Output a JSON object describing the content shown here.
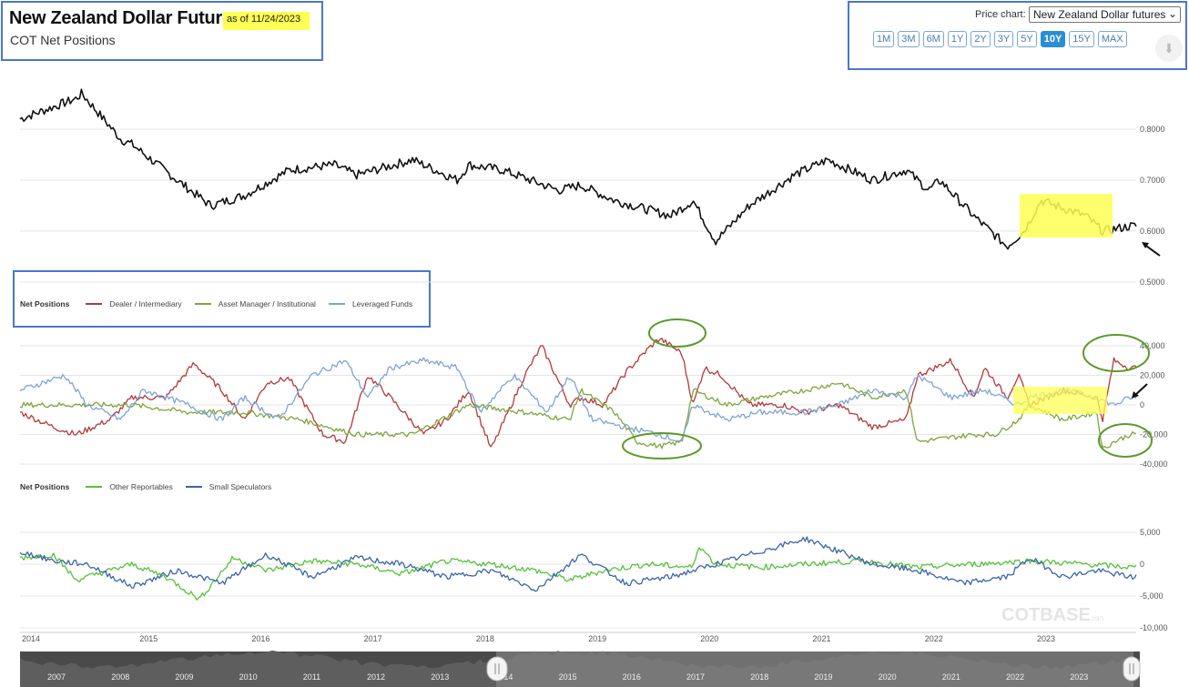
{
  "header": {
    "title": "New Zealand Dollar Futures",
    "as_of": "as of 11/24/2023",
    "subtitle": "COT Net Positions"
  },
  "controls": {
    "price_chart_label": "Price chart:",
    "price_chart_value": "New Zealand Dollar futures",
    "ranges": [
      "1M",
      "3M",
      "6M",
      "1Y",
      "2Y",
      "3Y",
      "5Y",
      "10Y",
      "15Y",
      "MAX"
    ],
    "active_range": "10Y",
    "download_icon": "download-icon"
  },
  "legend1": {
    "title": "Net Positions",
    "items": [
      "Dealer / Intermediary",
      "Asset Manager / Institutional",
      "Leveraged Funds"
    ]
  },
  "legend2": {
    "title": "Net Positions",
    "items": [
      "Other Reportables",
      "Small Speculators"
    ]
  },
  "colors": {
    "price": "#111111",
    "dealer": "#b03a3a",
    "asset": "#7fa53a",
    "leveraged": "#7fa4d4",
    "other": "#55c23a",
    "small": "#3a64a8",
    "highlight": "#ffff55",
    "frame": "#4a78c8",
    "annotation": "#5a9a2a"
  },
  "watermark": {
    "main": "COT",
    "sub": "BASE",
    "tld": ".com"
  },
  "chart_data": [
    {
      "type": "line",
      "title": "Price",
      "series": [
        {
          "name": "New Zealand Dollar futures",
          "x": [
            2014.0,
            2014.5,
            2014.55,
            2014.9,
            2015.0,
            2015.4,
            2015.7,
            2016.0,
            2016.4,
            2016.8,
            2017.0,
            2017.5,
            2017.9,
            2018.0,
            2018.3,
            2018.8,
            2019.0,
            2019.3,
            2019.8,
            2020.0,
            2020.2,
            2020.5,
            2020.9,
            2021.0,
            2021.2,
            2021.6,
            2021.9,
            2022.1,
            2022.2,
            2022.5,
            2022.8,
            2022.95,
            2023.1,
            2023.5,
            2023.65,
            2023.9
          ],
          "y": [
            0.82,
            0.86,
            0.87,
            0.78,
            0.77,
            0.7,
            0.65,
            0.67,
            0.72,
            0.73,
            0.71,
            0.74,
            0.7,
            0.73,
            0.72,
            0.68,
            0.69,
            0.66,
            0.63,
            0.66,
            0.58,
            0.65,
            0.71,
            0.72,
            0.74,
            0.7,
            0.72,
            0.68,
            0.7,
            0.63,
            0.57,
            0.6,
            0.66,
            0.63,
            0.6,
            0.61
          ]
        }
      ],
      "ylim": [
        0.5,
        0.85
      ],
      "yticks": [
        "0.8000",
        "0.7000",
        "0.6000",
        "0.5000"
      ]
    },
    {
      "type": "line",
      "title": "Net Positions",
      "series": [
        {
          "name": "Dealer / Intermediary",
          "x": [
            2014.0,
            2014.3,
            2014.5,
            2014.8,
            2015.0,
            2015.3,
            2015.55,
            2015.8,
            2016.0,
            2016.2,
            2016.4,
            2016.7,
            2016.9,
            2017.1,
            2017.3,
            2017.6,
            2017.8,
            2018.0,
            2018.2,
            2018.5,
            2018.65,
            2018.9,
            2019.0,
            2019.2,
            2019.4,
            2019.6,
            2019.7,
            2019.9,
            2020.0,
            2020.1,
            2020.25,
            2020.5,
            2020.8,
            2021.0,
            2021.3,
            2021.6,
            2021.9,
            2022.0,
            2022.3,
            2022.5,
            2022.6,
            2022.8,
            2022.9,
            2023.0,
            2023.3,
            2023.6,
            2023.65,
            2023.75,
            2023.9
          ],
          "y": [
            -5000,
            -15000,
            -20000,
            -10000,
            5000,
            5000,
            28000,
            10000,
            -10000,
            15000,
            18000,
            -20000,
            -25000,
            20000,
            5000,
            -20000,
            -10000,
            10000,
            -30000,
            20000,
            40000,
            0,
            5000,
            0,
            22000,
            38000,
            45000,
            35000,
            0,
            25000,
            20000,
            0,
            0,
            -5000,
            0,
            -15000,
            -10000,
            20000,
            30000,
            5000,
            25000,
            5000,
            20000,
            0,
            10000,
            5000,
            -10000,
            30000,
            25000
          ]
        },
        {
          "name": "Asset Manager / Institutional",
          "x": [
            2014.0,
            2014.5,
            2015.0,
            2015.5,
            2016.0,
            2016.5,
            2017.0,
            2017.5,
            2018.0,
            2018.5,
            2018.9,
            2019.0,
            2019.3,
            2019.5,
            2019.7,
            2019.9,
            2020.0,
            2020.3,
            2020.6,
            2021.0,
            2021.3,
            2021.6,
            2021.9,
            2022.0,
            2022.5,
            2022.7,
            2022.9,
            2023.0,
            2023.3,
            2023.6,
            2023.65,
            2023.75,
            2023.9
          ],
          "y": [
            0,
            0,
            0,
            -5000,
            -5000,
            -10000,
            -20000,
            -20000,
            0,
            -5000,
            -10000,
            10000,
            -5000,
            -25000,
            -28000,
            -25000,
            10000,
            0,
            5000,
            10000,
            15000,
            5000,
            10000,
            -25000,
            -20000,
            -20000,
            -10000,
            0,
            -10000,
            -5000,
            -30000,
            -25000,
            -20000
          ]
        },
        {
          "name": "Leveraged Funds",
          "x": [
            2014.0,
            2014.4,
            2014.6,
            2014.9,
            2015.1,
            2015.5,
            2015.8,
            2016.0,
            2016.3,
            2016.6,
            2016.9,
            2017.1,
            2017.3,
            2017.6,
            2017.9,
            2018.1,
            2018.4,
            2018.7,
            2018.9,
            2019.1,
            2019.4,
            2019.7,
            2019.9,
            2020.0,
            2020.3,
            2020.6,
            2021.0,
            2021.3,
            2021.6,
            2021.9,
            2022.0,
            2022.3,
            2022.6,
            2022.9,
            2023.0,
            2023.3,
            2023.6,
            2023.75,
            2023.9
          ],
          "y": [
            10000,
            20000,
            0,
            -10000,
            10000,
            0,
            -10000,
            5000,
            -10000,
            20000,
            30000,
            5000,
            25000,
            30000,
            25000,
            -5000,
            20000,
            -5000,
            20000,
            -10000,
            -15000,
            -20000,
            -25000,
            0,
            -10000,
            -5000,
            -5000,
            0,
            10000,
            5000,
            20000,
            5000,
            10000,
            0,
            5000,
            10000,
            5000,
            0,
            5000
          ]
        }
      ],
      "ylim": [
        -40000,
        40000
      ],
      "yticks": [
        "40,000",
        "20,000",
        "0",
        "-20,000",
        "-40,000"
      ]
    },
    {
      "type": "line",
      "title": "Net Positions",
      "series": [
        {
          "name": "Other Reportables",
          "x": [
            2014.0,
            2014.3,
            2014.5,
            2014.8,
            2015.0,
            2015.3,
            2015.6,
            2015.9,
            2016.2,
            2016.6,
            2017.0,
            2017.4,
            2017.8,
            2018.2,
            2018.6,
            2018.9,
            2019.2,
            2019.6,
            2020.0,
            2020.05,
            2020.2,
            2020.6,
            2021.0,
            2021.5,
            2022.0,
            2022.5,
            2023.0,
            2023.5,
            2023.9
          ],
          "y": [
            1000,
            1500,
            -2500,
            -1000,
            0,
            -2000,
            -5500,
            1000,
            -1000,
            500,
            0,
            -1500,
            500,
            0,
            -1000,
            -2500,
            -1000,
            0,
            -500,
            3000,
            0,
            -500,
            0,
            500,
            -500,
            0,
            500,
            0,
            -500
          ]
        },
        {
          "name": "Small Speculators",
          "x": [
            2014.0,
            2014.3,
            2014.6,
            2015.0,
            2015.4,
            2015.8,
            2016.2,
            2016.6,
            2017.0,
            2017.4,
            2017.8,
            2018.2,
            2018.6,
            2019.0,
            2019.4,
            2019.8,
            2020.0,
            2020.4,
            2020.8,
            2021.0,
            2021.3,
            2021.6,
            2022.0,
            2022.4,
            2022.8,
            2023.0,
            2023.3,
            2023.6,
            2023.9
          ],
          "y": [
            2000,
            500,
            0,
            -3500,
            -1000,
            -3000,
            1500,
            -2000,
            1000,
            0,
            -2000,
            -1000,
            -4000,
            1500,
            -3000,
            -2000,
            -1000,
            1000,
            3000,
            4000,
            2000,
            0,
            -1000,
            -3000,
            -2000,
            1000,
            -2000,
            -1000,
            -2000
          ]
        }
      ],
      "ylim": [
        -10000,
        5000
      ],
      "yticks": [
        "5,000",
        "0",
        "-5,000",
        "-10,000"
      ]
    }
  ],
  "x_axis": {
    "years": [
      "2014",
      "2015",
      "2016",
      "2017",
      "2018",
      "2019",
      "2020",
      "2021",
      "2022",
      "2023"
    ]
  },
  "navigator": {
    "years": [
      "2007",
      "2008",
      "2009",
      "2010",
      "2011",
      "2012",
      "2013",
      "2014",
      "2015",
      "2016",
      "2017",
      "2018",
      "2019",
      "2020",
      "2021",
      "2022",
      "2023"
    ]
  }
}
